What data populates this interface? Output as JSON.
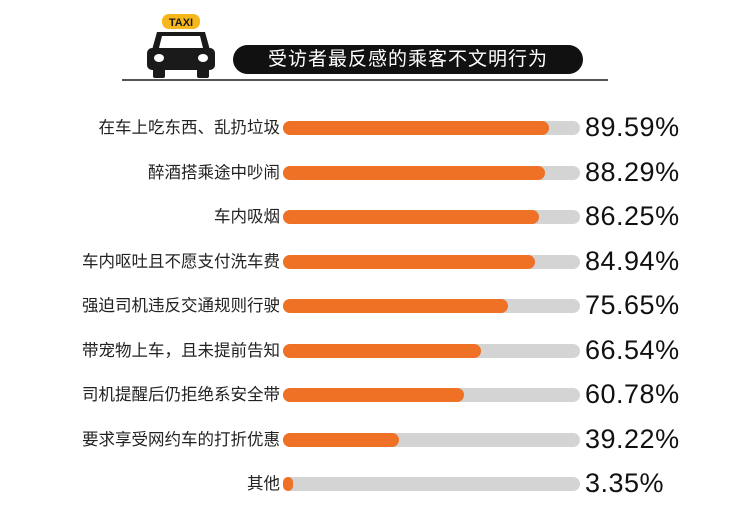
{
  "header": {
    "taxi_sign": "TAXI",
    "title": "受访者最反感的乘客不文明行为"
  },
  "colors": {
    "bar_fill": "#ee7125",
    "bar_track": "#d4d4d4",
    "title_bg": "#111111",
    "taxi_sign": "#f5b71b"
  },
  "rows": [
    {
      "label": "在车上吃东西、乱扔垃圾",
      "value": "89.59%",
      "pct": 89.59
    },
    {
      "label": "醉酒搭乘途中吵闹",
      "value": "88.29%",
      "pct": 88.29
    },
    {
      "label": "车内吸烟",
      "value": "86.25%",
      "pct": 86.25
    },
    {
      "label": "车内呕吐且不愿支付洗车费",
      "value": "84.94%",
      "pct": 84.94
    },
    {
      "label": "强迫司机违反交通规则行驶",
      "value": "75.65%",
      "pct": 75.65
    },
    {
      "label": "带宠物上车，且未提前告知",
      "value": "66.54%",
      "pct": 66.54
    },
    {
      "label": "司机提醒后仍拒绝系安全带",
      "value": "60.78%",
      "pct": 60.78
    },
    {
      "label": "要求享受网约车的打折优惠",
      "value": "39.22%",
      "pct": 39.22
    },
    {
      "label": "其他",
      "value": "3.35%",
      "pct": 3.35
    }
  ],
  "chart_data": {
    "type": "bar",
    "orientation": "horizontal",
    "title": "受访者最反感的乘客不文明行为",
    "categories": [
      "在车上吃东西、乱扔垃圾",
      "醉酒搭乘途中吵闹",
      "车内吸烟",
      "车内呕吐且不愿支付洗车费",
      "强迫司机违反交通规则行驶",
      "带宠物上车，且未提前告知",
      "司机提醒后仍拒绝系安全带",
      "要求享受网约车的打折优惠",
      "其他"
    ],
    "values": [
      89.59,
      88.29,
      86.25,
      84.94,
      75.65,
      66.54,
      60.78,
      39.22,
      3.35
    ],
    "unit": "%",
    "xlabel": "",
    "ylabel": "",
    "xlim": [
      0,
      100
    ],
    "grid": false,
    "legend": null,
    "data_labels": true
  }
}
